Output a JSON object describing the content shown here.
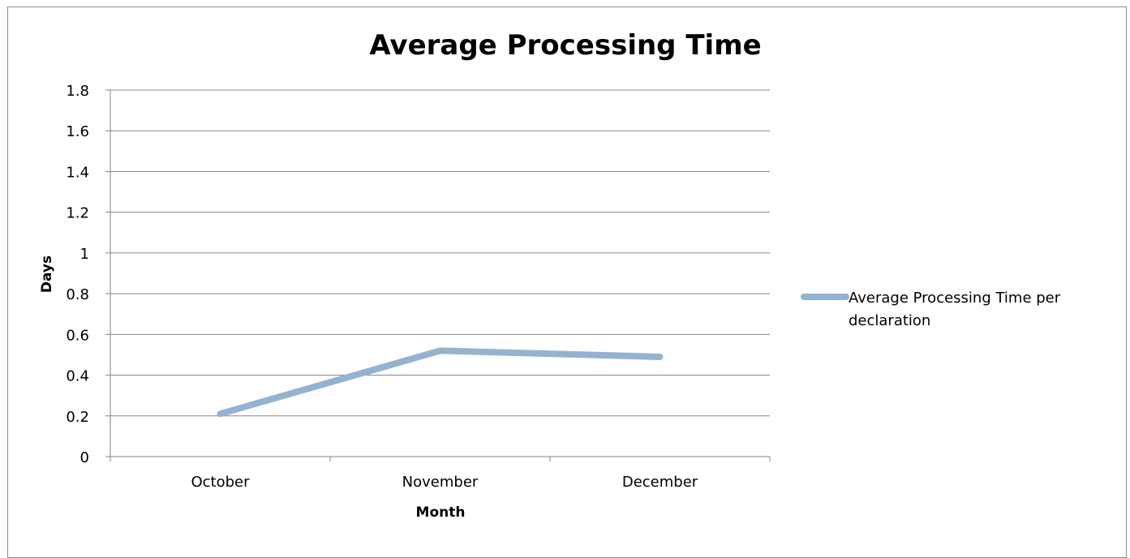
{
  "chart_data": {
    "type": "line",
    "title": "Average Processing Time",
    "xlabel": "Month",
    "ylabel": "Days",
    "categories": [
      "October",
      "November",
      "December"
    ],
    "series": [
      {
        "name": "Average Processing Time per declaration",
        "values": [
          0.21,
          0.52,
          0.49
        ],
        "color": "#93b3d3"
      }
    ],
    "ylim": [
      0,
      1.8
    ],
    "yticks": [
      "0",
      "0.2",
      "0.4",
      "0.6",
      "0.8",
      "1",
      "1.2",
      "1.4",
      "1.6",
      "1.8"
    ],
    "grid": true,
    "legend_position": "right"
  }
}
